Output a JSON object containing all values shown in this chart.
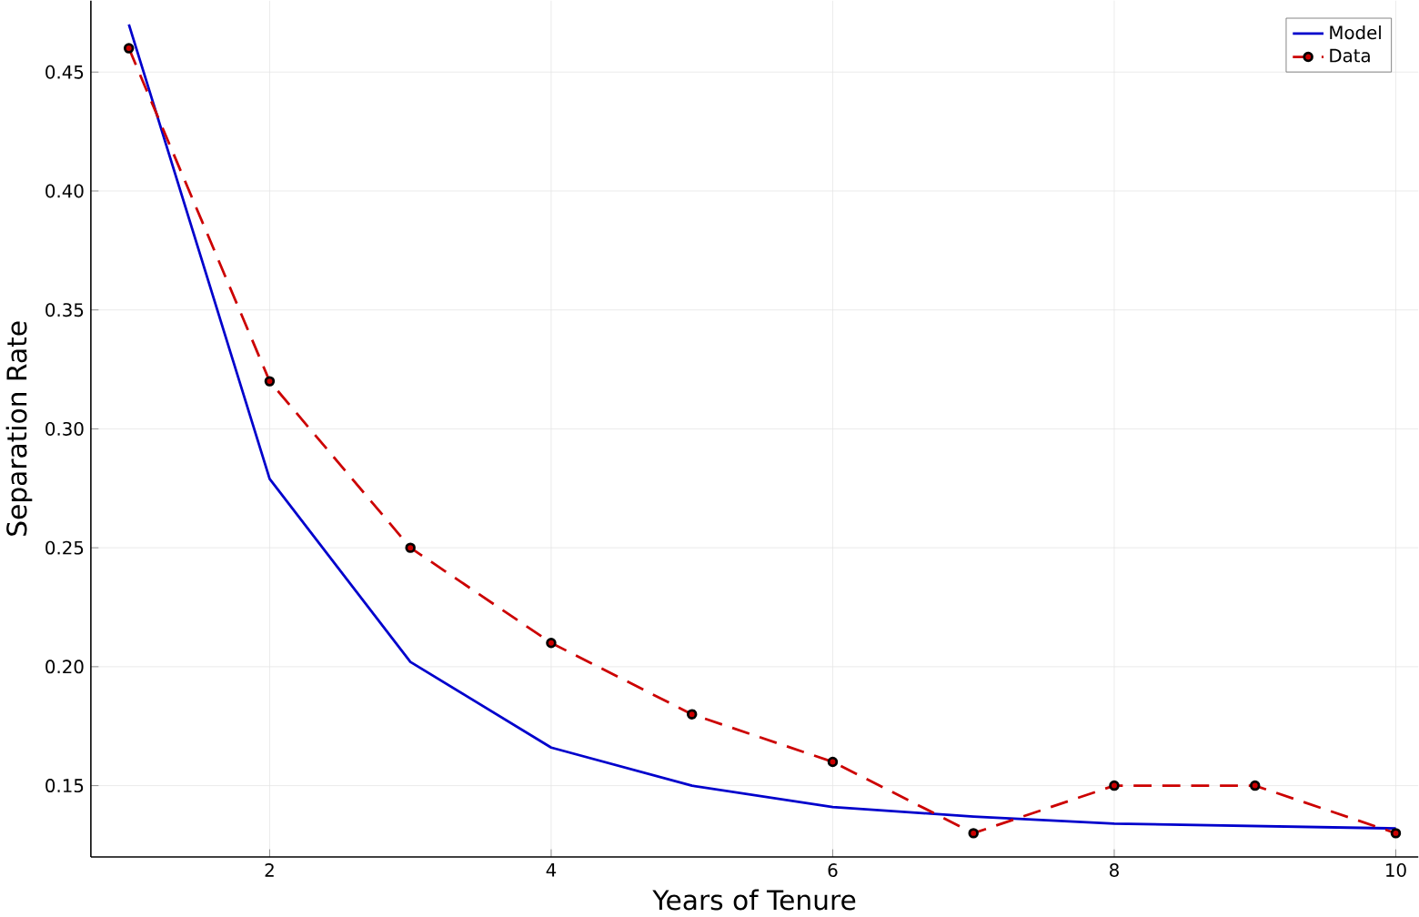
{
  "chart_data": {
    "type": "line",
    "xlabel": "Years of Tenure",
    "ylabel": "Separation Rate",
    "x": [
      1,
      2,
      3,
      4,
      5,
      6,
      7,
      8,
      9,
      10
    ],
    "xlim": [
      0.73,
      10.16
    ],
    "ylim": [
      0.12,
      0.48
    ],
    "xticks": [
      {
        "value": 2,
        "label": "2"
      },
      {
        "value": 4,
        "label": "4"
      },
      {
        "value": 6,
        "label": "6"
      },
      {
        "value": 8,
        "label": "8"
      },
      {
        "value": 10,
        "label": "10"
      }
    ],
    "yticks": [
      {
        "value": 0.15,
        "label": "0.15"
      },
      {
        "value": 0.2,
        "label": "0.20"
      },
      {
        "value": 0.25,
        "label": "0.25"
      },
      {
        "value": 0.3,
        "label": "0.30"
      },
      {
        "value": 0.35,
        "label": "0.35"
      },
      {
        "value": 0.4,
        "label": "0.40"
      },
      {
        "value": 0.45,
        "label": "0.45"
      }
    ],
    "grid": true,
    "legend": "top right",
    "series": [
      {
        "name": "Model",
        "color": "#0000cc",
        "line_style": "solid",
        "marker": "none",
        "values": [
          0.47,
          0.279,
          0.202,
          0.166,
          0.15,
          0.141,
          0.137,
          0.134,
          0.133,
          0.132
        ]
      },
      {
        "name": "Data",
        "color": "#cc0000",
        "line_style": "dashed",
        "marker": "circle",
        "values": [
          0.46,
          0.32,
          0.25,
          0.21,
          0.18,
          0.16,
          0.13,
          0.15,
          0.15,
          0.13
        ]
      }
    ]
  }
}
